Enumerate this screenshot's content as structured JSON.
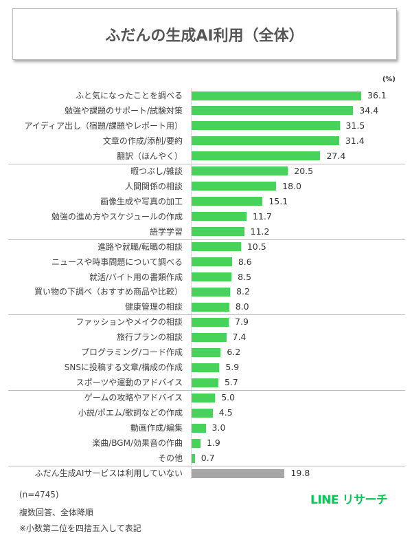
{
  "chart_data": {
    "type": "bar",
    "orientation": "horizontal",
    "title": "ふだんの生成AI利用（全体）",
    "unit": "(%)",
    "categories": [
      "ふと気になったことを調べる",
      "勉強や課題のサポート/試験対策",
      "アイディア出し（宿題/課題やレポート用）",
      "文章の作成/添削/要約",
      "翻訳（ほんやく）",
      "暇つぶし/雑談",
      "人間関係の相談",
      "画像生成や写真の加工",
      "勉強の進め方やスケジュールの作成",
      "語学学習",
      "進路や就職/転職の相談",
      "ニュースや時事問題について調べる",
      "就活/バイト用の書類作成",
      "買い物の下調べ（おすすめ商品や比較）",
      "健康管理の相談",
      "ファッションやメイクの相談",
      "旅行プランの相談",
      "プログラミング/コード作成",
      "SNSに投稿する文章/構成の作成",
      "スポーツや運動のアドバイス",
      "ゲームの攻略やアドバイス",
      "小説/ポエム/歌詞などの作成",
      "動画作成/編集",
      "楽曲/BGM/効果音の作曲",
      "その他",
      "ふだん生成AIサービスは利用していない"
    ],
    "values": [
      36.1,
      34.4,
      31.5,
      31.4,
      27.4,
      20.5,
      18.0,
      15.1,
      11.7,
      11.2,
      10.5,
      8.6,
      8.5,
      8.2,
      8.0,
      7.9,
      7.4,
      6.2,
      5.9,
      5.7,
      5.0,
      4.5,
      3.0,
      1.9,
      0.7,
      19.8
    ],
    "value_labels": [
      "36.1",
      "34.4",
      "31.5",
      "31.4",
      "27.4",
      "20.5",
      "18.0",
      "15.1",
      "11.7",
      "11.2",
      "10.5",
      "8.6",
      "8.5",
      "8.2",
      "8.0",
      "7.9",
      "7.4",
      "6.2",
      "5.9",
      "5.7",
      "5.0",
      "4.5",
      "3.0",
      "1.9",
      "0.7",
      "19.8"
    ],
    "xlim": [
      0,
      40
    ],
    "grid": false,
    "colors": {
      "used": "#47d35a",
      "not_used": "#a6a6a6"
    }
  },
  "notes": [
    "(n=4745)",
    "複数回答、全体降順",
    "※小数第二位を四捨五入して表記"
  ],
  "logo": "LINE リサーチ"
}
